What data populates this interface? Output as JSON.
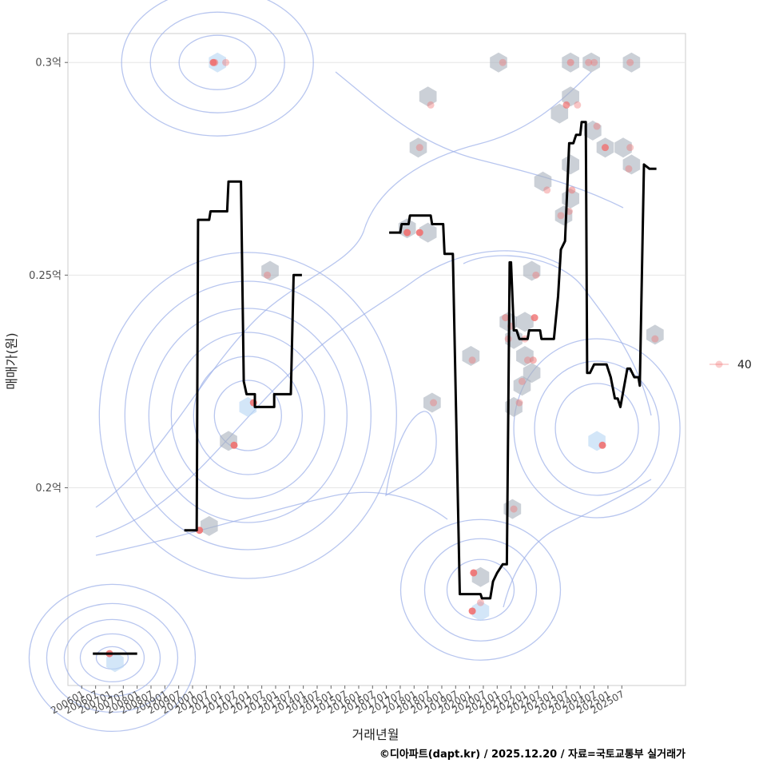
{
  "chart_data": {
    "type": "scatter",
    "xlabel": "거래년월",
    "ylabel": "매매가(원)",
    "caption": "©디아파트(dapt.kr) / 2025.12.20 / 자료=국토교통부 실거래가",
    "legend": {
      "label": "40",
      "position": "right"
    },
    "xlim": [
      2005.5,
      2027.8
    ],
    "ylim": [
      0.1535,
      0.3068
    ],
    "y_ticks": [
      {
        "value": 0.2,
        "label": "0.2억"
      },
      {
        "value": 0.25,
        "label": "0.25억"
      },
      {
        "value": 0.3,
        "label": "0.3억"
      }
    ],
    "x_ticks": [
      "200601",
      "200607",
      "200701",
      "200707",
      "200801",
      "200807",
      "200901",
      "200907",
      "201001",
      "201007",
      "201101",
      "201107",
      "201201",
      "201207",
      "201301",
      "201307",
      "201401",
      "201407",
      "201501",
      "201507",
      "201601",
      "201607",
      "201701",
      "201707",
      "201801",
      "201807",
      "201901",
      "201907",
      "202001",
      "202007",
      "202101",
      "202107",
      "202201",
      "202207",
      "202301",
      "202307",
      "202401",
      "202407",
      "202501",
      "202507"
    ],
    "grid": true,
    "colors": {
      "point": "#f07070",
      "hex": "#a9b0bd",
      "hex_light": "#bcd8f5",
      "contour": "#9aaee8",
      "line": "#000000",
      "grid": "#e6e6e6",
      "panel_border": "#cccccc"
    },
    "points": [
      {
        "x": 2007.0,
        "y": 0.161,
        "a": 0.9
      },
      {
        "x": 2010.25,
        "y": 0.19,
        "a": 0.9
      },
      {
        "x": 2010.75,
        "y": 0.3,
        "a": 0.9
      },
      {
        "x": 2010.8,
        "y": 0.3,
        "a": 0.5
      },
      {
        "x": 2011.2,
        "y": 0.3,
        "a": 0.4
      },
      {
        "x": 2011.5,
        "y": 0.21,
        "a": 0.9
      },
      {
        "x": 2012.2,
        "y": 0.22,
        "a": 0.9
      },
      {
        "x": 2012.7,
        "y": 0.25,
        "a": 0.4
      },
      {
        "x": 2017.75,
        "y": 0.26,
        "a": 0.9
      },
      {
        "x": 2018.2,
        "y": 0.26,
        "a": 0.9
      },
      {
        "x": 2018.2,
        "y": 0.28,
        "a": 0.4
      },
      {
        "x": 2018.6,
        "y": 0.29,
        "a": 0.4
      },
      {
        "x": 2018.7,
        "y": 0.22,
        "a": 0.4
      },
      {
        "x": 2020.1,
        "y": 0.23,
        "a": 0.4
      },
      {
        "x": 2020.15,
        "y": 0.18,
        "a": 0.9
      },
      {
        "x": 2020.1,
        "y": 0.171,
        "a": 0.9
      },
      {
        "x": 2020.4,
        "y": 0.173,
        "a": 0.4
      },
      {
        "x": 2021.2,
        "y": 0.3,
        "a": 0.4
      },
      {
        "x": 2021.3,
        "y": 0.24,
        "a": 0.5
      },
      {
        "x": 2021.4,
        "y": 0.235,
        "a": 0.4
      },
      {
        "x": 2021.5,
        "y": 0.238,
        "a": 0.4
      },
      {
        "x": 2021.6,
        "y": 0.195,
        "a": 0.4
      },
      {
        "x": 2021.8,
        "y": 0.22,
        "a": 0.4
      },
      {
        "x": 2021.9,
        "y": 0.225,
        "a": 0.4
      },
      {
        "x": 2022.0,
        "y": 0.235,
        "a": 0.4
      },
      {
        "x": 2022.1,
        "y": 0.23,
        "a": 0.4
      },
      {
        "x": 2022.3,
        "y": 0.23,
        "a": 0.5
      },
      {
        "x": 2022.35,
        "y": 0.24,
        "a": 0.8
      },
      {
        "x": 2022.4,
        "y": 0.25,
        "a": 0.4
      },
      {
        "x": 2022.8,
        "y": 0.27,
        "a": 0.4
      },
      {
        "x": 2023.3,
        "y": 0.264,
        "a": 0.4
      },
      {
        "x": 2023.5,
        "y": 0.29,
        "a": 0.7
      },
      {
        "x": 2023.6,
        "y": 0.265,
        "a": 0.4
      },
      {
        "x": 2023.7,
        "y": 0.27,
        "a": 0.5
      },
      {
        "x": 2023.65,
        "y": 0.3,
        "a": 0.5
      },
      {
        "x": 2023.9,
        "y": 0.29,
        "a": 0.4
      },
      {
        "x": 2024.3,
        "y": 0.3,
        "a": 0.4
      },
      {
        "x": 2024.5,
        "y": 0.3,
        "a": 0.4
      },
      {
        "x": 2024.6,
        "y": 0.285,
        "a": 0.4
      },
      {
        "x": 2024.8,
        "y": 0.21,
        "a": 0.9
      },
      {
        "x": 2024.9,
        "y": 0.28,
        "a": 0.8
      },
      {
        "x": 2025.8,
        "y": 0.3,
        "a": 0.4
      },
      {
        "x": 2025.8,
        "y": 0.28,
        "a": 0.4
      },
      {
        "x": 2025.75,
        "y": 0.275,
        "a": 0.4
      },
      {
        "x": 2026.7,
        "y": 0.235,
        "a": 0.4
      }
    ],
    "hexbins": [
      {
        "x": 2007.2,
        "y": 0.159,
        "light": true
      },
      {
        "x": 2010.6,
        "y": 0.191,
        "light": false
      },
      {
        "x": 2010.9,
        "y": 0.3,
        "light": true
      },
      {
        "x": 2011.3,
        "y": 0.211,
        "light": false
      },
      {
        "x": 2012.0,
        "y": 0.219,
        "light": true
      },
      {
        "x": 2012.8,
        "y": 0.251,
        "light": false
      },
      {
        "x": 2017.75,
        "y": 0.261,
        "light": false
      },
      {
        "x": 2018.5,
        "y": 0.26,
        "light": false
      },
      {
        "x": 2018.15,
        "y": 0.28,
        "light": false
      },
      {
        "x": 2018.5,
        "y": 0.292,
        "light": false
      },
      {
        "x": 2018.65,
        "y": 0.22,
        "light": false
      },
      {
        "x": 2020.05,
        "y": 0.231,
        "light": false
      },
      {
        "x": 2020.4,
        "y": 0.179,
        "light": false
      },
      {
        "x": 2020.4,
        "y": 0.171,
        "light": true
      },
      {
        "x": 2021.05,
        "y": 0.3,
        "light": false
      },
      {
        "x": 2021.4,
        "y": 0.239,
        "light": false
      },
      {
        "x": 2021.6,
        "y": 0.235,
        "light": false
      },
      {
        "x": 2021.55,
        "y": 0.195,
        "light": false
      },
      {
        "x": 2021.6,
        "y": 0.219,
        "light": false
      },
      {
        "x": 2021.9,
        "y": 0.224,
        "light": false
      },
      {
        "x": 2022.0,
        "y": 0.239,
        "light": false
      },
      {
        "x": 2022.0,
        "y": 0.231,
        "light": false
      },
      {
        "x": 2022.25,
        "y": 0.227,
        "light": false
      },
      {
        "x": 2022.25,
        "y": 0.251,
        "light": false
      },
      {
        "x": 2022.65,
        "y": 0.272,
        "light": false
      },
      {
        "x": 2023.25,
        "y": 0.288,
        "light": false
      },
      {
        "x": 2023.4,
        "y": 0.264,
        "light": false
      },
      {
        "x": 2023.65,
        "y": 0.268,
        "light": false
      },
      {
        "x": 2023.65,
        "y": 0.276,
        "light": false
      },
      {
        "x": 2023.65,
        "y": 0.292,
        "light": false
      },
      {
        "x": 2023.65,
        "y": 0.3,
        "light": false
      },
      {
        "x": 2024.4,
        "y": 0.3,
        "light": false
      },
      {
        "x": 2024.45,
        "y": 0.284,
        "light": false
      },
      {
        "x": 2024.6,
        "y": 0.211,
        "light": true
      },
      {
        "x": 2024.9,
        "y": 0.28,
        "light": false
      },
      {
        "x": 2025.55,
        "y": 0.28,
        "light": false
      },
      {
        "x": 2025.85,
        "y": 0.3,
        "light": false
      },
      {
        "x": 2025.85,
        "y": 0.276,
        "light": false
      },
      {
        "x": 2026.7,
        "y": 0.236,
        "light": false
      }
    ],
    "series": [
      {
        "name": "moving-average-2006",
        "values": [
          [
            2006.4,
            0.161
          ],
          [
            2008.0,
            0.161
          ]
        ]
      },
      {
        "name": "moving-average-2009",
        "values": [
          [
            2009.7,
            0.19
          ],
          [
            2010.15,
            0.19
          ],
          [
            2010.2,
            0.263
          ],
          [
            2010.6,
            0.263
          ],
          [
            2010.65,
            0.265
          ],
          [
            2011.25,
            0.265
          ],
          [
            2011.3,
            0.272
          ],
          [
            2011.75,
            0.272
          ],
          [
            2011.85,
            0.225
          ],
          [
            2011.95,
            0.222
          ],
          [
            2012.25,
            0.222
          ],
          [
            2012.25,
            0.219
          ],
          [
            2012.95,
            0.219
          ],
          [
            2012.95,
            0.222
          ],
          [
            2013.55,
            0.222
          ],
          [
            2013.65,
            0.25
          ],
          [
            2013.95,
            0.25
          ]
        ]
      },
      {
        "name": "moving-average-2017",
        "values": [
          [
            2017.1,
            0.26
          ],
          [
            2017.5,
            0.26
          ],
          [
            2017.55,
            0.262
          ],
          [
            2017.8,
            0.262
          ],
          [
            2017.85,
            0.264
          ],
          [
            2018.6,
            0.264
          ],
          [
            2018.65,
            0.262
          ],
          [
            2019.05,
            0.262
          ],
          [
            2019.1,
            0.255
          ],
          [
            2019.4,
            0.255
          ],
          [
            2019.65,
            0.175
          ],
          [
            2020.4,
            0.175
          ],
          [
            2020.45,
            0.174
          ],
          [
            2020.75,
            0.174
          ],
          [
            2020.85,
            0.178
          ],
          [
            2021.0,
            0.18
          ],
          [
            2021.2,
            0.182
          ],
          [
            2021.35,
            0.182
          ],
          [
            2021.45,
            0.253
          ],
          [
            2021.5,
            0.253
          ],
          [
            2021.6,
            0.237
          ],
          [
            2021.7,
            0.237
          ],
          [
            2021.8,
            0.235
          ],
          [
            2022.1,
            0.235
          ],
          [
            2022.15,
            0.237
          ],
          [
            2022.55,
            0.237
          ],
          [
            2022.6,
            0.235
          ],
          [
            2022.7,
            0.235
          ],
          [
            2023.05,
            0.235
          ],
          [
            2023.2,
            0.245
          ],
          [
            2023.3,
            0.256
          ],
          [
            2023.45,
            0.258
          ],
          [
            2023.6,
            0.281
          ],
          [
            2023.75,
            0.281
          ],
          [
            2023.85,
            0.283
          ],
          [
            2024.0,
            0.283
          ],
          [
            2024.05,
            0.286
          ],
          [
            2024.2,
            0.286
          ],
          [
            2024.25,
            0.227
          ],
          [
            2024.35,
            0.227
          ],
          [
            2024.5,
            0.229
          ],
          [
            2024.95,
            0.229
          ],
          [
            2025.1,
            0.226
          ],
          [
            2025.25,
            0.221
          ],
          [
            2025.35,
            0.221
          ],
          [
            2025.45,
            0.219
          ],
          [
            2025.7,
            0.228
          ],
          [
            2025.8,
            0.228
          ],
          [
            2025.95,
            0.226
          ],
          [
            2026.1,
            0.226
          ],
          [
            2026.15,
            0.224
          ],
          [
            2026.3,
            0.276
          ],
          [
            2026.5,
            0.275
          ],
          [
            2026.7,
            0.275
          ],
          [
            2026.75,
            0.275
          ]
        ]
      }
    ]
  }
}
